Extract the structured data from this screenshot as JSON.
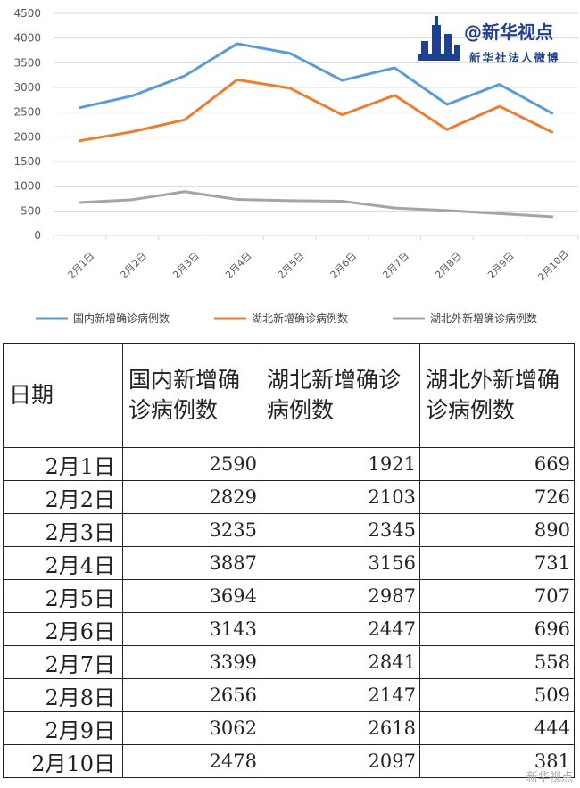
{
  "logo": {
    "handle": "@新华视点",
    "sub": "新华社法人微博"
  },
  "chart_data": {
    "type": "line",
    "categories": [
      "2月1日",
      "2月2日",
      "2月3日",
      "2月4日",
      "2月5日",
      "2月6日",
      "2月7日",
      "2月8日",
      "2月9日",
      "2月10日"
    ],
    "ylim": [
      0,
      4500
    ],
    "yticks": [
      0,
      500,
      1000,
      1500,
      2000,
      2500,
      3000,
      3500,
      4000,
      4500
    ],
    "grid": true,
    "legend_position": "bottom",
    "series": [
      {
        "name": "国内新增确诊病例数",
        "color": "#5b9bd5",
        "values": [
          2590,
          2829,
          3235,
          3887,
          3694,
          3143,
          3399,
          2656,
          3062,
          2478
        ]
      },
      {
        "name": "湖北新增确诊病例数",
        "color": "#ed7d31",
        "values": [
          1921,
          2103,
          2345,
          3156,
          2987,
          2447,
          2841,
          2147,
          2618,
          2097
        ]
      },
      {
        "name": "湖北外新增确诊病例数",
        "color": "#a5a5a5",
        "values": [
          669,
          726,
          890,
          731,
          707,
          696,
          558,
          509,
          444,
          381
        ]
      }
    ]
  },
  "table": {
    "headers": [
      "日期",
      "国内新增确诊病例数",
      "湖北新增确诊病例数",
      "湖北外新增确诊病例数"
    ],
    "rows": [
      [
        "2月1日",
        "2590",
        "1921",
        "669"
      ],
      [
        "2月2日",
        "2829",
        "2103",
        "726"
      ],
      [
        "2月3日",
        "3235",
        "2345",
        "890"
      ],
      [
        "2月4日",
        "3887",
        "3156",
        "731"
      ],
      [
        "2月5日",
        "3694",
        "2987",
        "707"
      ],
      [
        "2月6日",
        "3143",
        "2447",
        "696"
      ],
      [
        "2月7日",
        "3399",
        "2841",
        "558"
      ],
      [
        "2月8日",
        "2656",
        "2147",
        "509"
      ],
      [
        "2月9日",
        "3062",
        "2618",
        "444"
      ],
      [
        "2月10日",
        "2478",
        "2097",
        "381"
      ]
    ]
  },
  "watermark": "新华视点"
}
